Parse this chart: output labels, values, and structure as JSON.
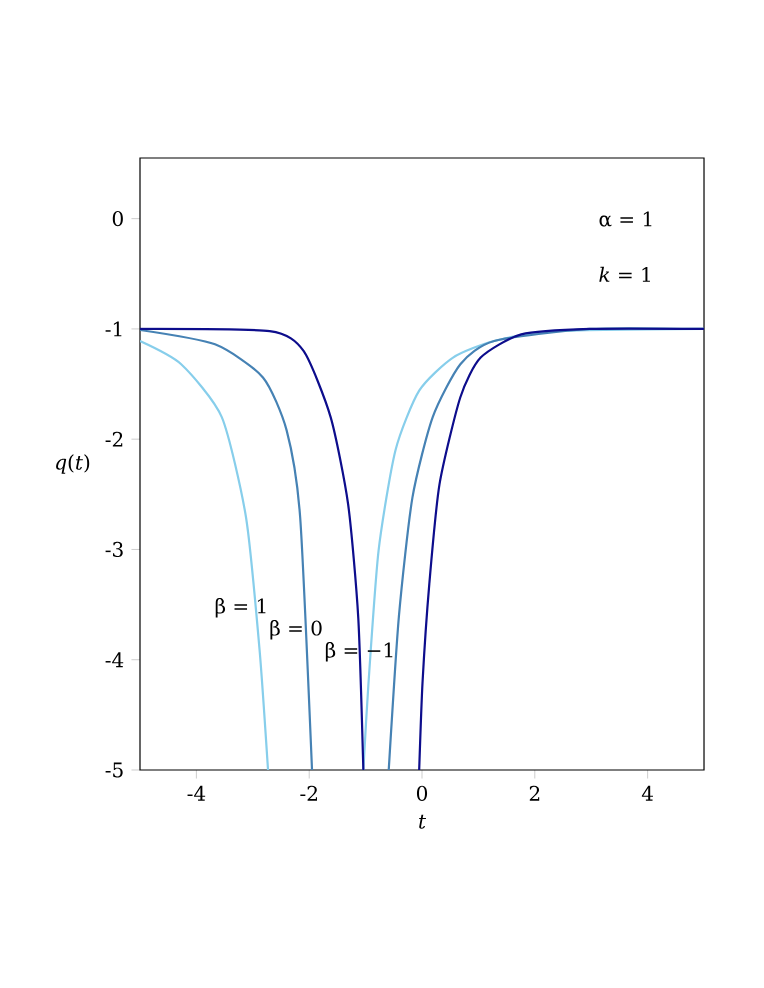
{
  "chart_data": {
    "type": "line",
    "xlabel": "t",
    "ylabel": "*q*(*t*)",
    "xlim": [
      -5,
      5
    ],
    "ylim": [
      -5,
      0.55
    ],
    "xticks": [
      -4,
      -2,
      0,
      2,
      4
    ],
    "yticks": [
      -5,
      -4,
      -3,
      -2,
      -1,
      0
    ],
    "legend": false,
    "grid": false,
    "marker": "none",
    "line_style": "solid",
    "annotations": [
      "α = 1",
      "*k* = 1"
    ],
    "series": [
      {
        "name": "β = 1",
        "color": "#87ceeb",
        "x": [
          -5,
          -4.27,
          -3.55,
          -3.12,
          -2.88,
          -2.73,
          null,
          -1.04,
          -0.95,
          -0.77,
          -0.47,
          -0.05,
          0.55,
          1.28,
          2.36,
          5
        ],
        "values": [
          -1.11,
          -1.32,
          -1.8,
          -2.71,
          -3.91,
          -5,
          null,
          -5,
          -4.22,
          -3.01,
          -2.1,
          -1.56,
          -1.26,
          -1.11,
          -1.02,
          -1
        ]
      },
      {
        "name": "β = 0",
        "color": "#4682b4",
        "x": [
          -5,
          -3.67,
          -2.82,
          -2.4,
          -2.16,
          -1.95,
          null,
          -0.59,
          -0.41,
          -0.17,
          0.19,
          0.68,
          1.28,
          2.97,
          5
        ],
        "values": [
          -1.01,
          -1.14,
          -1.44,
          -1.92,
          -2.71,
          -5,
          null,
          -5,
          -3.61,
          -2.53,
          -1.8,
          -1.32,
          -1.11,
          -1,
          -1
        ]
      },
      {
        "name": "β = −1",
        "color": "#0d0d8c",
        "x": [
          -5,
          -2.7,
          -2.1,
          -1.62,
          -1.31,
          -1.13,
          -1.04,
          null,
          -0.05,
          0.01,
          0.13,
          0.31,
          0.68,
          1.04,
          1.76,
          2.97,
          5
        ],
        "values": [
          -1,
          -1.02,
          -1.2,
          -1.8,
          -2.59,
          -3.62,
          -5,
          null,
          -5,
          -4.2,
          -3.31,
          -2.41,
          -1.62,
          -1.26,
          -1.05,
          -1,
          -1
        ]
      }
    ]
  }
}
